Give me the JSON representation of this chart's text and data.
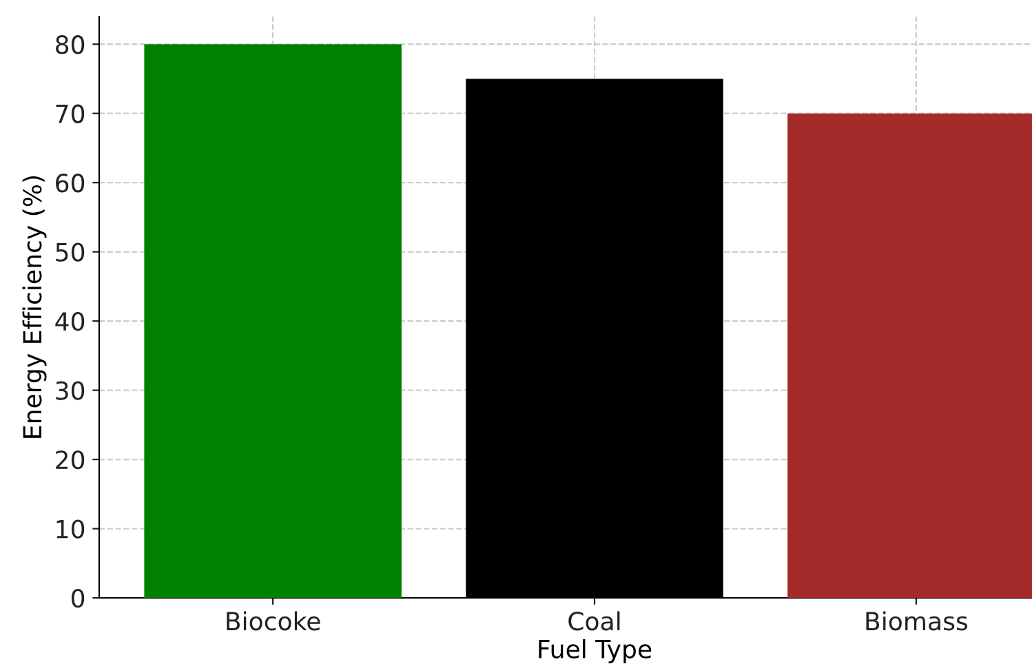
{
  "chart_data": {
    "type": "bar",
    "xlabel": "Fuel Type",
    "ylabel": "Energy Efficiency (%)",
    "categories": [
      "Biocoke",
      "Coal",
      "Biomass"
    ],
    "values": [
      80,
      75,
      70
    ],
    "colors": [
      "#008000",
      "#000000",
      "#a52a2a"
    ],
    "ylim": [
      0,
      84
    ],
    "yticks": [
      0,
      10,
      20,
      30,
      40,
      50,
      60,
      70,
      80
    ],
    "grid": true
  }
}
